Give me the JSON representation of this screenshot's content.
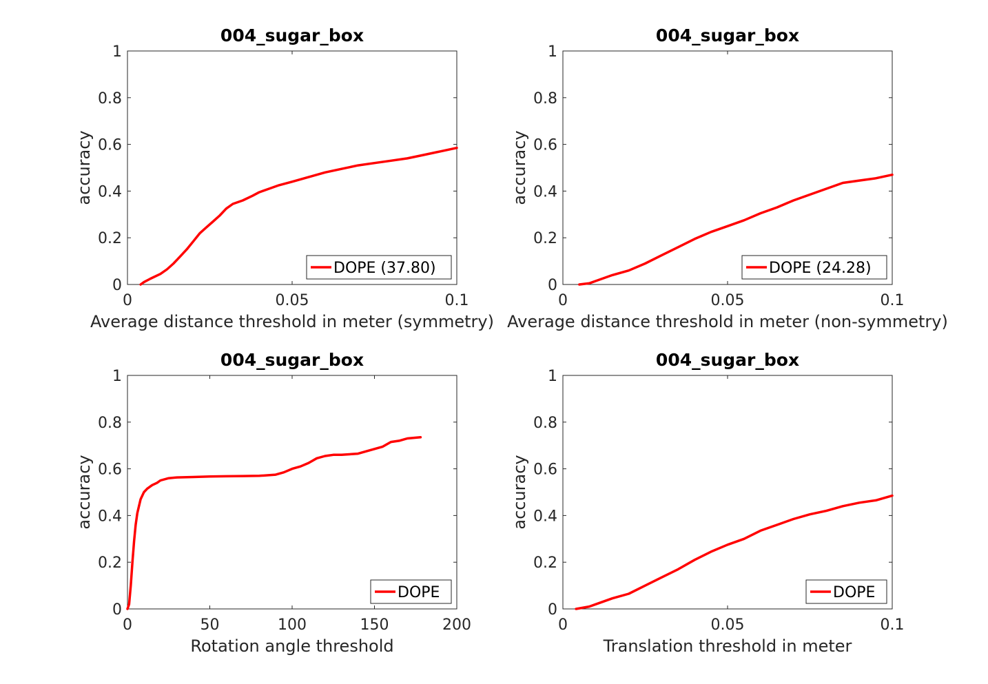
{
  "chart_data": [
    {
      "type": "line",
      "title": "004_sugar_box",
      "xlabel": "Average distance threshold in meter (symmetry)",
      "ylabel": "accuracy",
      "xlim": [
        0,
        0.1
      ],
      "ylim": [
        0,
        1
      ],
      "xticks": [
        "0",
        "0.05",
        "0.1"
      ],
      "yticks": [
        "0",
        "0.2",
        "0.4",
        "0.6",
        "0.8",
        "1"
      ],
      "grid": false,
      "legend_position": "bottom-right",
      "series": [
        {
          "name": "DOPE (37.80)",
          "color": "#ff0000",
          "x": [
            0.004,
            0.005,
            0.007,
            0.01,
            0.012,
            0.014,
            0.016,
            0.018,
            0.02,
            0.022,
            0.024,
            0.026,
            0.028,
            0.03,
            0.032,
            0.035,
            0.038,
            0.04,
            0.043,
            0.046,
            0.05,
            0.055,
            0.06,
            0.065,
            0.07,
            0.075,
            0.08,
            0.085,
            0.09,
            0.095,
            0.1
          ],
          "y": [
            0.0,
            0.01,
            0.025,
            0.045,
            0.065,
            0.09,
            0.12,
            0.15,
            0.185,
            0.22,
            0.245,
            0.27,
            0.295,
            0.325,
            0.345,
            0.36,
            0.38,
            0.395,
            0.41,
            0.425,
            0.44,
            0.46,
            0.48,
            0.495,
            0.51,
            0.52,
            0.53,
            0.54,
            0.555,
            0.57,
            0.585
          ]
        }
      ]
    },
    {
      "type": "line",
      "title": "004_sugar_box",
      "xlabel": "Average distance threshold in meter (non-symmetry)",
      "ylabel": "accuracy",
      "xlim": [
        0,
        0.1
      ],
      "ylim": [
        0,
        1
      ],
      "xticks": [
        "0",
        "0.05",
        "0.1"
      ],
      "yticks": [
        "0",
        "0.2",
        "0.4",
        "0.6",
        "0.8",
        "1"
      ],
      "grid": false,
      "legend_position": "bottom-right",
      "series": [
        {
          "name": "DOPE (24.28)",
          "color": "#ff0000",
          "x": [
            0.005,
            0.008,
            0.01,
            0.015,
            0.02,
            0.025,
            0.03,
            0.035,
            0.04,
            0.045,
            0.05,
            0.055,
            0.06,
            0.065,
            0.07,
            0.075,
            0.08,
            0.085,
            0.09,
            0.095,
            0.1
          ],
          "y": [
            0.0,
            0.005,
            0.015,
            0.04,
            0.06,
            0.09,
            0.125,
            0.16,
            0.195,
            0.225,
            0.25,
            0.275,
            0.305,
            0.33,
            0.36,
            0.385,
            0.41,
            0.435,
            0.445,
            0.455,
            0.47
          ]
        }
      ]
    },
    {
      "type": "line",
      "title": "004_sugar_box",
      "xlabel": "Rotation angle threshold",
      "ylabel": "accuracy",
      "xlim": [
        0,
        200
      ],
      "ylim": [
        0,
        1
      ],
      "xticks": [
        "0",
        "50",
        "100",
        "150",
        "200"
      ],
      "yticks": [
        "0",
        "0.2",
        "0.4",
        "0.6",
        "0.8",
        "1"
      ],
      "grid": false,
      "legend_position": "bottom-right",
      "series": [
        {
          "name": "DOPE",
          "color": "#ff0000",
          "x": [
            0,
            1,
            2,
            3,
            4,
            5,
            6,
            7,
            8,
            10,
            12,
            15,
            18,
            20,
            25,
            30,
            40,
            50,
            60,
            70,
            80,
            90,
            95,
            100,
            105,
            110,
            115,
            120,
            125,
            130,
            140,
            145,
            150,
            155,
            160,
            165,
            170,
            178
          ],
          "y": [
            0.0,
            0.02,
            0.1,
            0.2,
            0.29,
            0.36,
            0.41,
            0.44,
            0.47,
            0.5,
            0.515,
            0.53,
            0.54,
            0.55,
            0.56,
            0.563,
            0.565,
            0.567,
            0.568,
            0.569,
            0.57,
            0.575,
            0.585,
            0.6,
            0.61,
            0.625,
            0.645,
            0.655,
            0.66,
            0.66,
            0.665,
            0.675,
            0.685,
            0.695,
            0.715,
            0.72,
            0.73,
            0.735
          ]
        }
      ]
    },
    {
      "type": "line",
      "title": "004_sugar_box",
      "xlabel": "Translation threshold in meter",
      "ylabel": "accuracy",
      "xlim": [
        0,
        0.1
      ],
      "ylim": [
        0,
        1
      ],
      "xticks": [
        "0",
        "0.05",
        "0.1"
      ],
      "yticks": [
        "0",
        "0.2",
        "0.4",
        "0.6",
        "0.8",
        "1"
      ],
      "grid": false,
      "legend_position": "bottom-right",
      "series": [
        {
          "name": "DOPE",
          "color": "#ff0000",
          "x": [
            0.004,
            0.008,
            0.01,
            0.015,
            0.02,
            0.025,
            0.03,
            0.035,
            0.04,
            0.045,
            0.05,
            0.055,
            0.06,
            0.065,
            0.07,
            0.075,
            0.08,
            0.085,
            0.09,
            0.095,
            0.1
          ],
          "y": [
            0.0,
            0.01,
            0.02,
            0.045,
            0.065,
            0.1,
            0.135,
            0.17,
            0.21,
            0.245,
            0.275,
            0.3,
            0.335,
            0.36,
            0.385,
            0.405,
            0.42,
            0.44,
            0.455,
            0.465,
            0.485
          ]
        }
      ]
    }
  ]
}
